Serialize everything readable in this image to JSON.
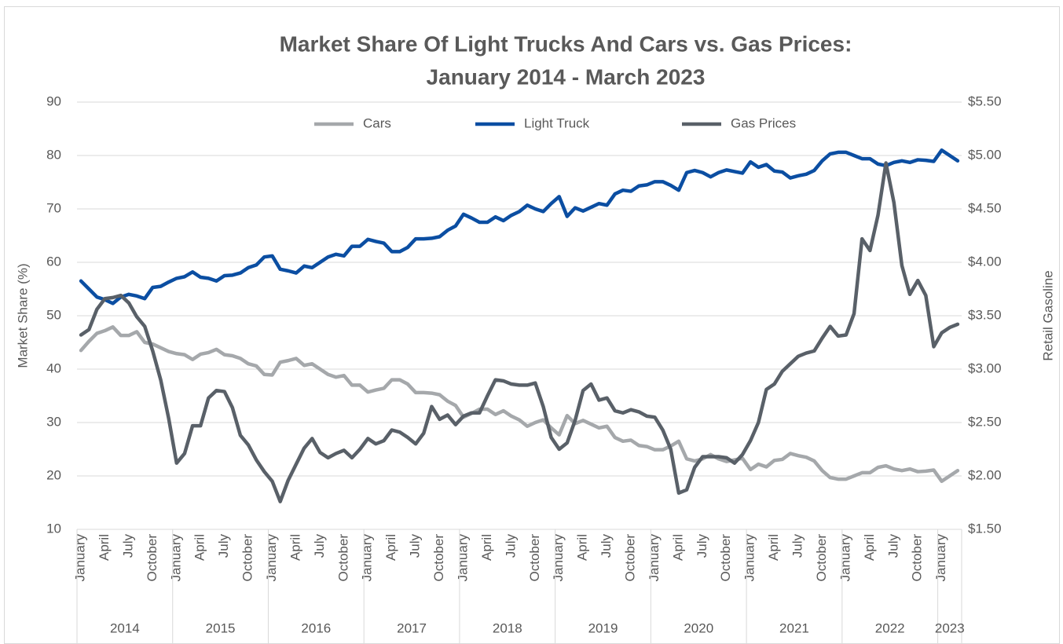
{
  "chart_data": {
    "type": "line",
    "title": [
      "Market Share Of Light Trucks And Cars vs. Gas Prices:",
      "January 2014 - March 2023"
    ],
    "ylabel": "Market Share (%)",
    "y2label": "Retail Gasoline",
    "legend": "top",
    "grid": true,
    "categories": [
      "January",
      null,
      null,
      "April",
      null,
      null,
      "July",
      null,
      null,
      "October",
      null,
      null,
      "January",
      null,
      null,
      "April",
      null,
      null,
      "July",
      null,
      null,
      "October",
      null,
      null,
      "January",
      null,
      null,
      "April",
      null,
      null,
      "July",
      null,
      null,
      "October",
      null,
      null,
      "January",
      null,
      null,
      "April",
      null,
      null,
      "July",
      null,
      null,
      "October",
      null,
      null,
      "January",
      null,
      null,
      "April",
      null,
      null,
      "July",
      null,
      null,
      "October",
      null,
      null,
      "January",
      null,
      null,
      "April",
      null,
      null,
      "July",
      null,
      null,
      "October",
      null,
      null,
      "January",
      null,
      null,
      "April",
      null,
      null,
      "July",
      null,
      null,
      "October",
      null,
      null,
      "January",
      null,
      null,
      "April",
      null,
      null,
      "July",
      null,
      null,
      "October",
      null,
      null,
      "January",
      null,
      null,
      "April",
      null,
      null,
      "July",
      null,
      null,
      "October",
      null,
      null,
      "January",
      null,
      null
    ],
    "category_groups": [
      "2014",
      "2015",
      "2016",
      "2017",
      "2018",
      "2019",
      "2020",
      "2021",
      "2022",
      "2023"
    ],
    "ylim": [
      10,
      90
    ],
    "yticks": [
      10,
      20,
      30,
      40,
      50,
      60,
      70,
      80,
      90
    ],
    "y2lim": [
      1.5,
      5.5
    ],
    "y2ticks": [
      {
        "value": 1.5,
        "label": "$1.50"
      },
      {
        "value": 2,
        "label": "$2.00"
      },
      {
        "value": 2.5,
        "label": "$2.50"
      },
      {
        "value": 3,
        "label": "$3.00"
      },
      {
        "value": 3.5,
        "label": "$3.50"
      },
      {
        "value": 4,
        "label": "$4.00"
      },
      {
        "value": 4.5,
        "label": "$4.50"
      },
      {
        "value": 5,
        "label": "$5.00"
      },
      {
        "value": 5.5,
        "label": "$5.50"
      }
    ],
    "series": [
      {
        "name": "Cars",
        "color": "#a5a8ab",
        "values": [
          43.5,
          45.2,
          46.7,
          47.2,
          47.9,
          46.3,
          46.3,
          47,
          45,
          44.7,
          44,
          43.3,
          42.9,
          42.7,
          41.8,
          42.8,
          43.1,
          43.7,
          42.7,
          42.5,
          42,
          41,
          40.6,
          39,
          38.9,
          41.3,
          41.6,
          42,
          40.7,
          41,
          40,
          39,
          38.5,
          38.8,
          37,
          37,
          35.7,
          36.1,
          36.4,
          38,
          38,
          37.2,
          35.6,
          35.6,
          35.5,
          35.2,
          34,
          33.2,
          31,
          31.7,
          32.5,
          32.5,
          31.5,
          32.2,
          31.2,
          30.5,
          29.3,
          30,
          30.5,
          29,
          27.7,
          31.3,
          29.8,
          30.4,
          29.7,
          29,
          29.3,
          27.2,
          26.5,
          26.7,
          25.7,
          25.5,
          24.9,
          24.9,
          25.6,
          26.5,
          23.2,
          22.8,
          23.2,
          24,
          23.2,
          22.7,
          23,
          23.3,
          21.2,
          22.2,
          21.7,
          22.9,
          23.1,
          24.2,
          23.8,
          23.5,
          22.8,
          21,
          19.7,
          19.4,
          19.4,
          20,
          20.6,
          20.6,
          21.6,
          21.9,
          21.3,
          21,
          21.3,
          20.8,
          20.9,
          21.1,
          19,
          20,
          21
        ]
      },
      {
        "name": "Light Truck",
        "color": "#0b4ea2",
        "values": [
          56.5,
          55,
          53.5,
          53,
          52.3,
          53.5,
          54,
          53.7,
          53.2,
          55.3,
          55.5,
          56.3,
          57,
          57.3,
          58.2,
          57.2,
          57,
          56.5,
          57.5,
          57.6,
          58,
          59,
          59.5,
          61,
          61.2,
          58.7,
          58.4,
          58,
          59.3,
          59,
          60,
          61,
          61.5,
          61.2,
          63,
          63,
          64.3,
          63.9,
          63.6,
          62,
          62,
          62.8,
          64.4,
          64.4,
          64.5,
          64.8,
          66,
          66.8,
          69,
          68.3,
          67.5,
          67.5,
          68.5,
          67.8,
          68.8,
          69.5,
          70.7,
          70,
          69.5,
          71,
          72.3,
          68.6,
          70.2,
          69.6,
          70.3,
          71,
          70.7,
          72.8,
          73.5,
          73.3,
          74.3,
          74.5,
          75.1,
          75.1,
          74.4,
          73.5,
          76.8,
          77.2,
          76.8,
          76,
          76.8,
          77.3,
          77,
          76.7,
          78.8,
          77.8,
          78.3,
          77.1,
          76.9,
          75.8,
          76.2,
          76.5,
          77.2,
          79,
          80.3,
          80.6,
          80.6,
          80,
          79.4,
          79.4,
          78.4,
          78.1,
          78.7,
          79,
          78.7,
          79.2,
          79.1,
          78.9,
          81,
          80,
          79
        ]
      },
      {
        "name": "Gas Prices",
        "color": "#596068",
        "axis": "y2",
        "values": [
          3.32,
          3.37,
          3.56,
          3.66,
          3.67,
          3.69,
          3.62,
          3.49,
          3.4,
          3.17,
          2.9,
          2.54,
          2.12,
          2.21,
          2.47,
          2.47,
          2.73,
          2.8,
          2.79,
          2.64,
          2.38,
          2.29,
          2.15,
          2.04,
          1.95,
          1.76,
          1.96,
          2.11,
          2.26,
          2.35,
          2.22,
          2.17,
          2.21,
          2.24,
          2.17,
          2.25,
          2.35,
          2.3,
          2.33,
          2.43,
          2.41,
          2.36,
          2.3,
          2.4,
          2.65,
          2.53,
          2.57,
          2.48,
          2.56,
          2.59,
          2.59,
          2.75,
          2.9,
          2.89,
          2.86,
          2.85,
          2.85,
          2.87,
          2.65,
          2.36,
          2.25,
          2.31,
          2.52,
          2.8,
          2.86,
          2.71,
          2.73,
          2.61,
          2.59,
          2.62,
          2.6,
          2.56,
          2.55,
          2.43,
          2.25,
          1.84,
          1.87,
          2.08,
          2.18,
          2.18,
          2.18,
          2.17,
          2.12,
          2.2,
          2.33,
          2.5,
          2.81,
          2.86,
          2.98,
          3.05,
          3.12,
          3.15,
          3.17,
          3.29,
          3.4,
          3.31,
          3.32,
          3.52,
          4.22,
          4.11,
          4.44,
          4.93,
          4.56,
          3.97,
          3.7,
          3.83,
          3.69,
          3.21,
          3.34,
          3.39,
          3.42
        ]
      }
    ]
  }
}
